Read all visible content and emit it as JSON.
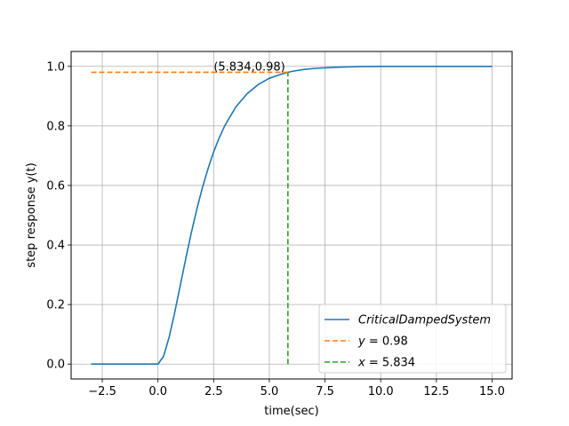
{
  "chart_data": {
    "type": "line",
    "xlabel": "time(sec)",
    "ylabel": "step response y(t)",
    "xlim": [
      -3.9,
      15.9
    ],
    "ylim": [
      -0.05,
      1.05
    ],
    "xticks": [
      -2.5,
      0.0,
      2.5,
      5.0,
      7.5,
      10.0,
      12.5,
      15.0
    ],
    "xtick_labels": [
      "−2.5",
      "0.0",
      "2.5",
      "5.0",
      "7.5",
      "10.0",
      "12.5",
      "15.0"
    ],
    "yticks": [
      0.0,
      0.2,
      0.4,
      0.6,
      0.8,
      1.0
    ],
    "ytick_labels": [
      "0.0",
      "0.2",
      "0.4",
      "0.6",
      "0.8",
      "1.0"
    ],
    "grid": true,
    "legend_position": "lower right",
    "series": [
      {
        "name": "CriticalDampedSystem",
        "style": "solid",
        "color": "#1f77b4",
        "x": [
          -3.0,
          -2.0,
          -1.0,
          0.0,
          0.25,
          0.5,
          0.75,
          1.0,
          1.25,
          1.5,
          1.75,
          2.0,
          2.25,
          2.5,
          2.75,
          3.0,
          3.5,
          4.0,
          4.5,
          5.0,
          5.5,
          5.834,
          6.0,
          6.5,
          7.0,
          7.5,
          8.0,
          9.0,
          10.0,
          11.0,
          12.0,
          13.0,
          14.0,
          15.0
        ],
        "y": [
          0.0,
          0.0,
          0.0,
          0.0,
          0.026,
          0.09,
          0.173,
          0.264,
          0.355,
          0.442,
          0.522,
          0.594,
          0.657,
          0.713,
          0.76,
          0.801,
          0.864,
          0.908,
          0.939,
          0.96,
          0.973,
          0.98,
          0.983,
          0.989,
          0.993,
          0.995,
          0.997,
          0.999,
          1.0,
          1.0,
          1.0,
          1.0,
          1.0,
          1.0
        ]
      },
      {
        "name": "y = 0.98",
        "legend_prefix": "y",
        "legend_value": " = 0.98",
        "style": "dashed",
        "color": "#ff7f0e",
        "x": [
          -3.0,
          5.834
        ],
        "y": [
          0.98,
          0.98
        ]
      },
      {
        "name": "x = 5.834",
        "legend_prefix": "x",
        "legend_value": " = 5.834",
        "style": "dashed",
        "color": "#2ca02c",
        "x": [
          5.834,
          5.834
        ],
        "y": [
          0.0,
          0.98
        ]
      }
    ],
    "annotation": {
      "text": "(5.834,0.98)",
      "x": 2.5,
      "y": 0.98
    }
  }
}
